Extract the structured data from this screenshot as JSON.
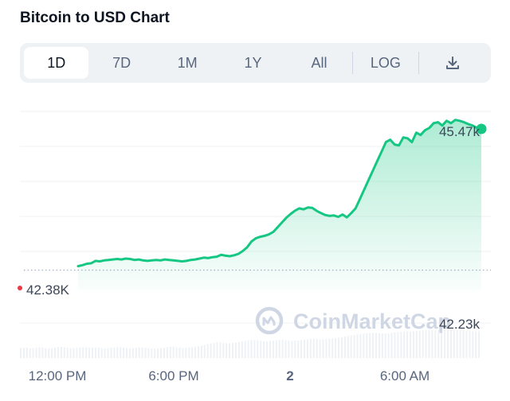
{
  "header": {
    "title": "Bitcoin to USD Chart"
  },
  "toolbar": {
    "tabs": [
      {
        "label": "1D",
        "active": true
      },
      {
        "label": "7D",
        "active": false
      },
      {
        "label": "1M",
        "active": false
      },
      {
        "label": "1Y",
        "active": false
      },
      {
        "label": "All",
        "active": false
      }
    ],
    "log_label": "LOG",
    "download_icon": "download-icon"
  },
  "watermark": {
    "text": "CoinMarketCap",
    "icon": "coinmarketcap-logo-icon"
  },
  "colors": {
    "line": "#16c784",
    "area_top": "#16c784",
    "grid": "#eff2f5",
    "text": "#58667e"
  },
  "chart_data": {
    "type": "line",
    "x_labels": [
      "12:00 PM",
      "6:00 PM",
      "2",
      "6:00 AM"
    ],
    "open_price_label": "42.38K",
    "high_label": "45.47k",
    "low_label": "42.23k",
    "open_price": 42.38,
    "y_range": [
      41.85,
      45.75
    ],
    "series": [
      {
        "values": [
          42.38,
          42.4,
          42.43,
          42.44,
          42.49,
          42.48,
          42.5,
          42.51,
          42.52,
          42.53,
          42.52,
          42.54,
          42.53,
          42.51,
          42.52,
          42.5,
          42.49,
          42.5,
          42.51,
          42.5,
          42.52,
          42.51,
          42.5,
          42.49,
          42.48,
          42.49,
          42.51,
          42.52,
          42.54,
          42.56,
          42.55,
          42.57,
          42.58,
          42.62,
          42.6,
          42.59,
          42.61,
          42.64,
          42.7,
          42.78,
          42.9,
          42.97,
          43.0,
          43.02,
          43.05,
          43.1,
          43.2,
          43.3,
          43.4,
          43.48,
          43.55,
          43.6,
          43.58,
          43.62,
          43.61,
          43.55,
          43.5,
          43.46,
          43.44,
          43.45,
          43.42,
          43.47,
          43.41,
          43.5,
          43.6,
          43.8,
          44.0,
          44.2,
          44.4,
          44.6,
          44.8,
          45.0,
          45.05,
          44.95,
          44.93,
          45.1,
          45.08,
          45.0,
          45.2,
          45.15,
          45.25,
          45.3,
          45.4,
          45.42,
          45.35,
          45.45,
          45.4,
          45.47,
          45.45,
          45.42,
          45.38,
          45.35,
          45.3,
          45.28
        ],
        "volume": [
          0.3,
          0.32,
          0.29,
          0.31,
          0.33,
          0.3,
          0.28,
          0.31,
          0.34,
          0.32,
          0.3,
          0.29,
          0.31,
          0.33,
          0.3,
          0.32,
          0.31,
          0.29,
          0.3,
          0.32,
          0.33,
          0.31,
          0.29,
          0.3,
          0.32,
          0.31,
          0.3,
          0.28,
          0.29,
          0.31,
          0.33,
          0.34,
          0.32,
          0.3,
          0.31,
          0.33,
          0.35,
          0.38,
          0.42,
          0.45,
          0.48,
          0.46,
          0.44,
          0.45,
          0.47,
          0.5,
          0.52,
          0.55,
          0.53,
          0.51,
          0.5,
          0.52,
          0.54,
          0.55,
          0.53,
          0.51,
          0.52,
          0.54,
          0.56,
          0.58,
          0.57,
          0.55,
          0.56,
          0.58,
          0.6,
          0.62,
          0.65,
          0.68,
          0.7,
          0.72,
          0.74,
          0.75,
          0.76,
          0.74,
          0.73,
          0.75,
          0.77,
          0.78,
          0.8,
          0.79,
          0.81,
          0.82,
          0.84,
          0.85,
          0.83,
          0.84,
          0.86,
          0.85,
          0.84,
          0.83,
          0.82,
          0.81,
          0.8,
          0.8
        ]
      }
    ],
    "grid": true
  }
}
